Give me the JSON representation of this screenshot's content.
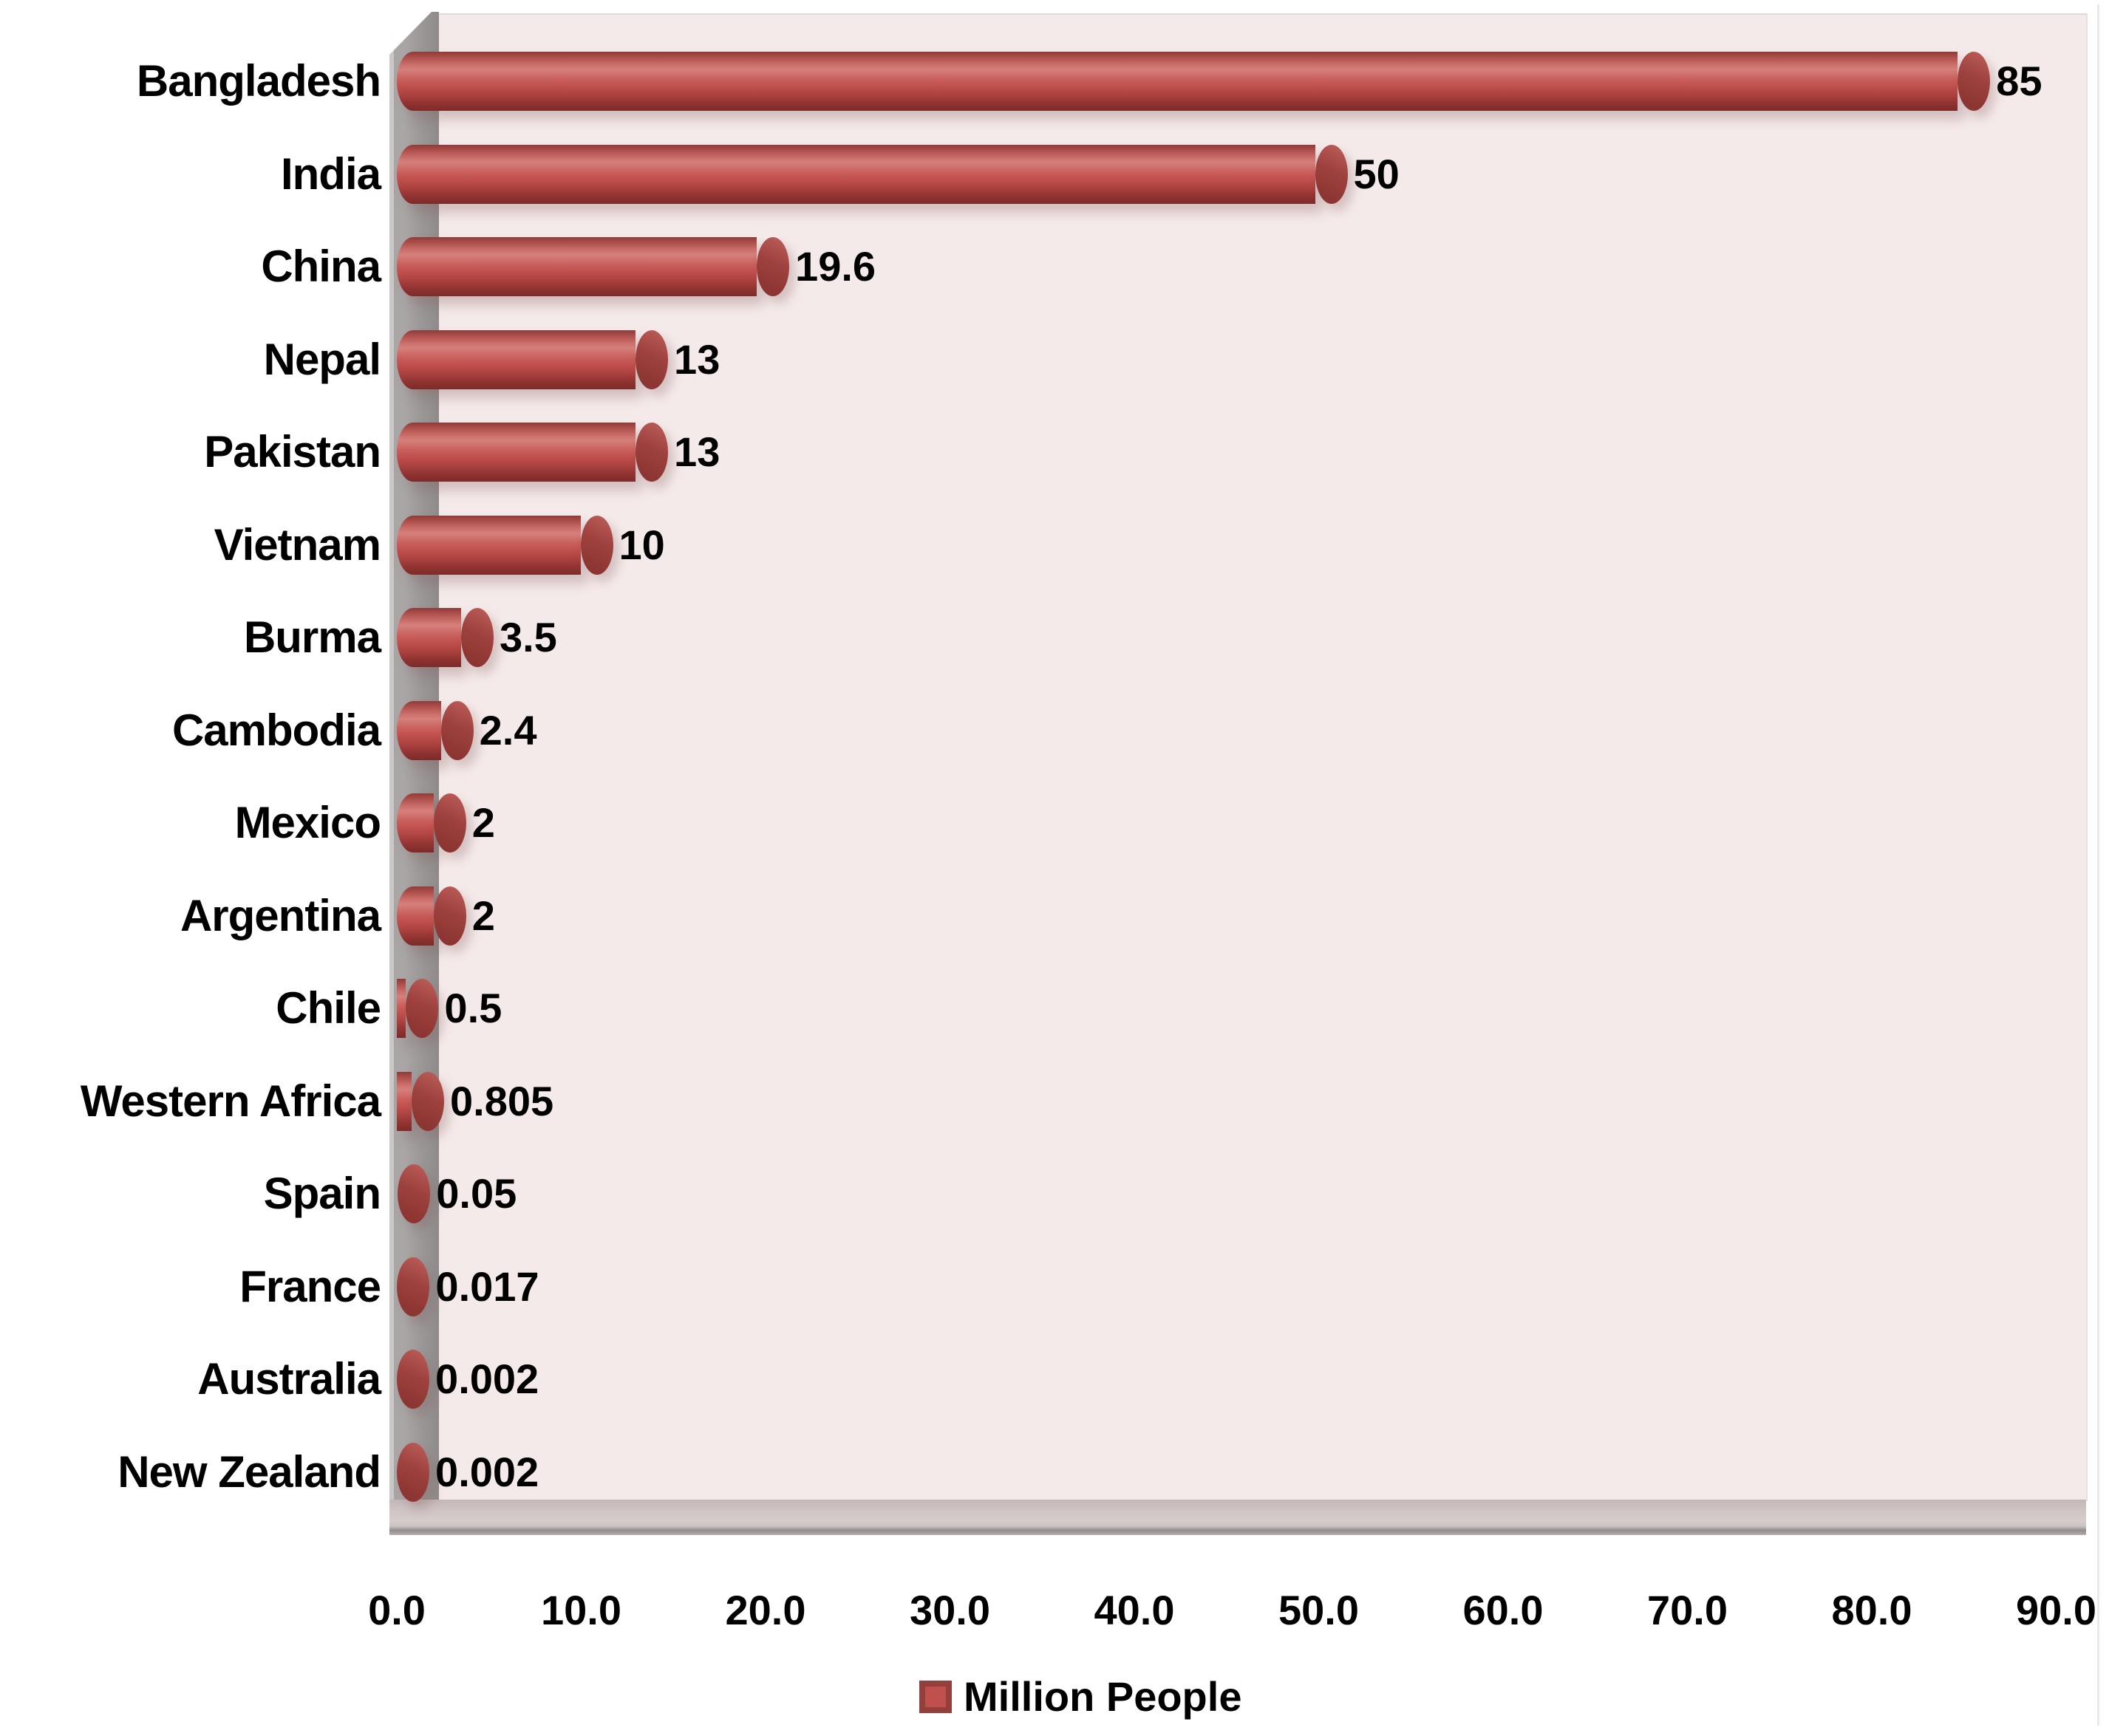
{
  "chart_data": {
    "type": "bar",
    "orientation": "horizontal",
    "categories": [
      "Bangladesh",
      "India",
      "China",
      "Nepal",
      "Pakistan",
      "Vietnam",
      "Burma",
      "Cambodia",
      "Mexico",
      "Argentina",
      "Chile",
      "Western Africa",
      "Spain",
      "France",
      "Australia",
      "New Zealand"
    ],
    "values": [
      85,
      50,
      19.6,
      13,
      13,
      10,
      3.5,
      2.4,
      2,
      2,
      0.5,
      0.805,
      0.05,
      0.017,
      0.002,
      0.002
    ],
    "data_labels": [
      "85",
      "50",
      "19.6",
      "13",
      "13",
      "10",
      "3.5",
      "2.4",
      "2",
      "2",
      "0.5",
      "0.805",
      "0.05",
      "0.017",
      "0.002",
      "0.002"
    ],
    "title": "",
    "xlabel": "",
    "ylabel": "",
    "x_ticks": [
      "0.0",
      "10.0",
      "20.0",
      "30.0",
      "40.0",
      "50.0",
      "60.0",
      "70.0",
      "80.0",
      "90.0"
    ],
    "xlim": [
      0,
      90
    ],
    "grid": false,
    "legend": {
      "label": "Million People",
      "position": "bottom"
    },
    "style": "3d-cylinder",
    "colors": {
      "bar": "#C0504D",
      "bar_light": "#D5807C",
      "bar_dark": "#7C2B29",
      "cap": "#9E413E",
      "plot_bg": "#F5EAEA",
      "wall": "#9B9797",
      "floor": "#D6CDCD",
      "text": "#000000"
    }
  }
}
